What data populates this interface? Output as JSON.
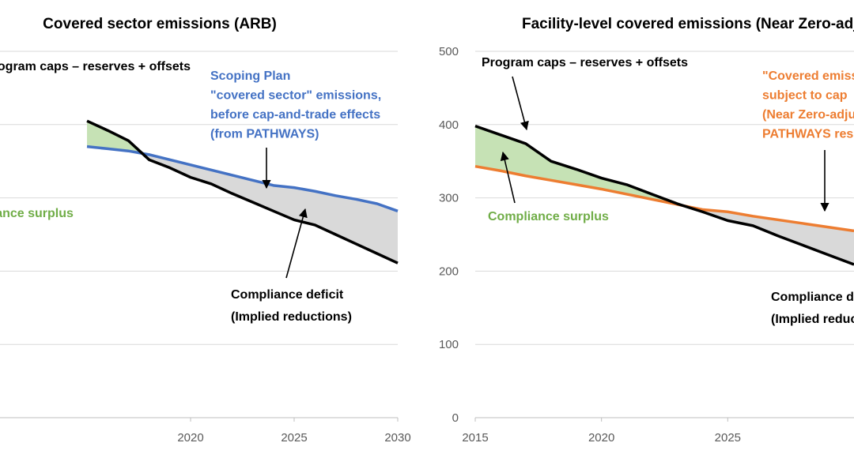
{
  "chart_data": [
    {
      "type": "area",
      "title": "Covered sector emissions (ARB)",
      "x_ticks": [
        "2020",
        "2025",
        "2030"
      ],
      "xlim": [
        2010.8,
        2030
      ],
      "ylim": [
        0,
        500
      ],
      "grid": true,
      "series": [
        {
          "name": "Program caps – reserves + offsets",
          "color": "#000000",
          "x": [
            2015,
            2016,
            2017,
            2018,
            2019,
            2020,
            2021,
            2022,
            2023,
            2024,
            2025,
            2026,
            2027,
            2028,
            2029,
            2030
          ],
          "y": [
            405,
            392,
            378,
            352,
            341,
            328,
            319,
            306,
            294,
            282,
            270,
            263,
            250,
            237,
            224,
            211
          ]
        },
        {
          "name": "Scoping Plan \"covered sector\" emissions, before cap-and-trade effects (from PATHWAYS)",
          "color": "#4472C4",
          "x": [
            2015,
            2016,
            2017,
            2018,
            2019,
            2020,
            2021,
            2022,
            2023,
            2024,
            2025,
            2026,
            2027,
            2028,
            2029,
            2030
          ],
          "y": [
            370,
            367,
            364,
            359,
            352,
            345,
            338,
            331,
            324,
            317,
            314,
            309,
            303,
            298,
            292,
            282
          ]
        }
      ],
      "annotations": [
        {
          "lines": [
            "Program caps – reserves + offsets"
          ],
          "color": "#000000"
        },
        {
          "lines": [
            "Scoping Plan",
            "\"covered sector\" emissions,",
            "before cap-and-trade effects",
            "(from PATHWAYS)"
          ],
          "color": "#4472C4"
        },
        {
          "lines": [
            "Compliance surplus"
          ],
          "color": "#70AD47"
        },
        {
          "lines": [
            "Compliance deficit",
            "(Implied reductions)"
          ],
          "color": "#000000"
        }
      ]
    },
    {
      "type": "area",
      "title": "Facility-level covered emissions (Near Zero-adj.)",
      "y_ticks": [
        "0",
        "100",
        "200",
        "300",
        "400",
        "500"
      ],
      "x_ticks": [
        "2015",
        "2020",
        "2025"
      ],
      "xlim": [
        2015,
        2030
      ],
      "ylim": [
        0,
        500
      ],
      "grid": true,
      "series": [
        {
          "name": "Program caps – reserves + offsets",
          "color": "#000000",
          "x": [
            2015,
            2016,
            2017,
            2018,
            2019,
            2020,
            2021,
            2022,
            2023,
            2024,
            2025,
            2026,
            2027,
            2028,
            2029,
            2030
          ],
          "y": [
            398,
            386,
            374,
            350,
            339,
            327,
            318,
            305,
            292,
            281,
            269,
            262,
            248,
            235,
            222,
            209
          ]
        },
        {
          "name": "\"Covered emissions\" subject to cap (Near Zero-adjusted PATHWAYS results)",
          "color": "#ED7D31",
          "x": [
            2015,
            2016,
            2017,
            2018,
            2019,
            2020,
            2021,
            2022,
            2023,
            2024,
            2025,
            2026,
            2027,
            2028,
            2029,
            2030
          ],
          "y": [
            343,
            337,
            330,
            324,
            318,
            312,
            305,
            298,
            291,
            284,
            281,
            275,
            270,
            265,
            260,
            255
          ]
        }
      ],
      "annotations": [
        {
          "lines": [
            "Program caps – reserves + offsets"
          ],
          "color": "#000000"
        },
        {
          "lines": [
            "\"Covered emissions\"",
            "subject to cap",
            "(Near Zero-adjusted",
            "PATHWAYS results)"
          ],
          "color": "#ED7D31"
        },
        {
          "lines": [
            "Compliance surplus"
          ],
          "color": "#70AD47"
        },
        {
          "lines": [
            "Compliance deficit",
            "(Implied reductions)"
          ],
          "color": "#000000"
        }
      ]
    }
  ],
  "colors": {
    "surplus_fill": "#C6E2B5",
    "deficit_fill": "#D9D9D9",
    "grid": "#D9D9D9",
    "axis": "#BFBFBF"
  }
}
